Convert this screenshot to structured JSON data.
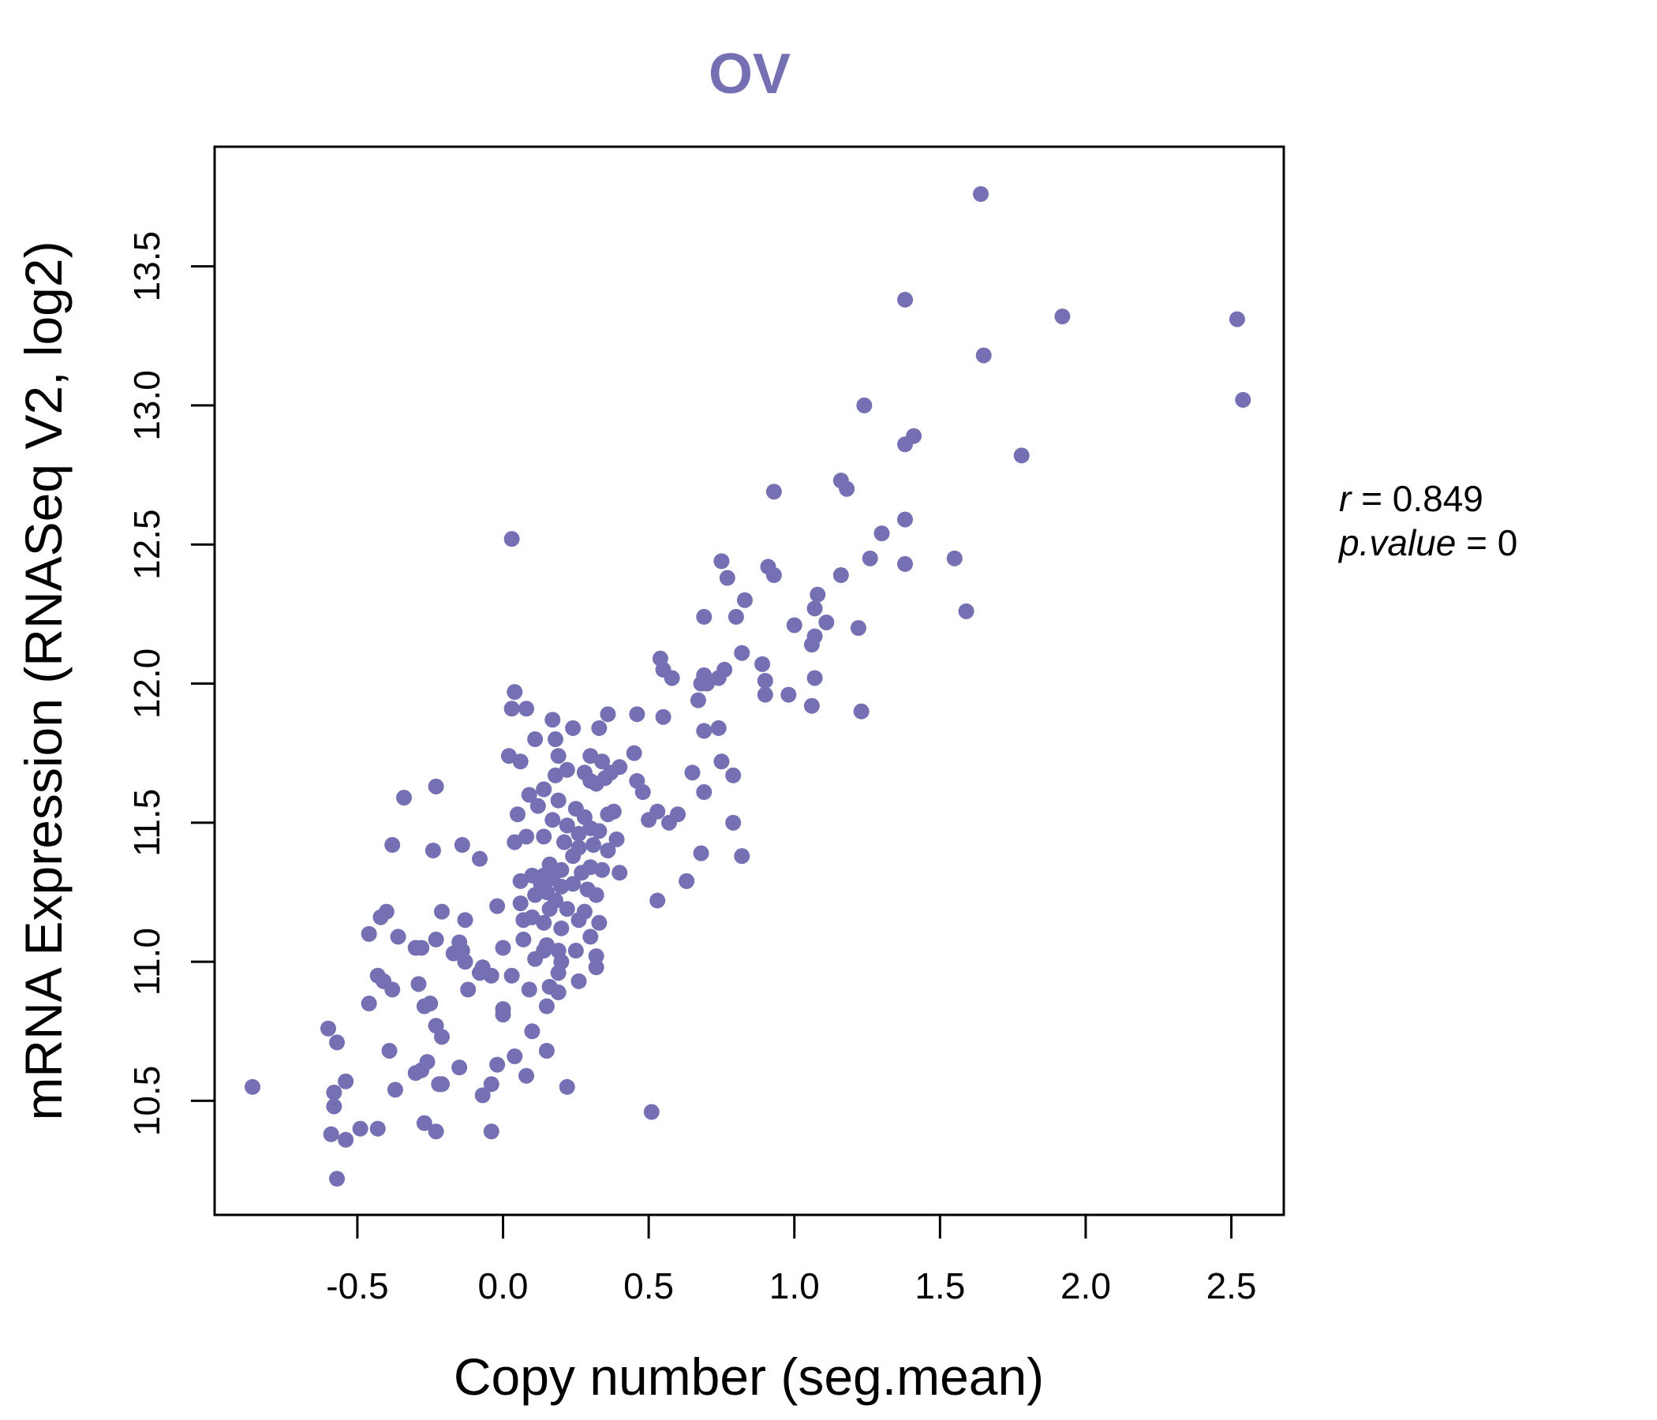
{
  "chart_data": {
    "type": "scatter",
    "title": "OV",
    "xlabel": "Copy number (seg.mean)",
    "ylabel": "mRNA Expression (RNASeq V2, log2)",
    "xlim": [
      -0.99,
      2.68
    ],
    "ylim": [
      10.09,
      13.93
    ],
    "xticks": [
      -0.5,
      0.0,
      0.5,
      1.0,
      1.5,
      2.0,
      2.5
    ],
    "xtick_labels": [
      "-0.5",
      "0.0",
      "0.5",
      "1.0",
      "1.5",
      "2.0",
      "2.5"
    ],
    "yticks": [
      10.5,
      11.0,
      11.5,
      12.0,
      12.5,
      13.0,
      13.5
    ],
    "ytick_labels": [
      "10.5",
      "11.0",
      "11.5",
      "12.0",
      "12.5",
      "13.0",
      "13.5"
    ],
    "color": "#7570b3",
    "stats": {
      "r_symbol": "r",
      "r_value": "0.849",
      "p_symbol": "p.value",
      "p_value": "0",
      "eq": "="
    },
    "points": [
      [
        1.64,
        13.76
      ],
      [
        1.38,
        13.38
      ],
      [
        1.92,
        13.32
      ],
      [
        2.52,
        13.31
      ],
      [
        1.65,
        13.18
      ],
      [
        2.54,
        13.02
      ],
      [
        1.24,
        13.0
      ],
      [
        1.41,
        12.89
      ],
      [
        1.38,
        12.86
      ],
      [
        1.78,
        12.82
      ],
      [
        1.16,
        12.73
      ],
      [
        1.18,
        12.7
      ],
      [
        0.93,
        12.69
      ],
      [
        1.38,
        12.59
      ],
      [
        1.3,
        12.54
      ],
      [
        0.03,
        12.52
      ],
      [
        0.75,
        12.44
      ],
      [
        1.26,
        12.45
      ],
      [
        1.38,
        12.43
      ],
      [
        1.55,
        12.45
      ],
      [
        0.91,
        12.42
      ],
      [
        0.93,
        12.39
      ],
      [
        1.16,
        12.39
      ],
      [
        0.77,
        12.38
      ],
      [
        1.08,
        12.32
      ],
      [
        0.83,
        12.3
      ],
      [
        1.07,
        12.27
      ],
      [
        1.59,
        12.26
      ],
      [
        0.69,
        12.24
      ],
      [
        0.8,
        12.24
      ],
      [
        1.11,
        12.22
      ],
      [
        1.0,
        12.21
      ],
      [
        1.22,
        12.2
      ],
      [
        1.07,
        12.17
      ],
      [
        1.06,
        12.14
      ],
      [
        0.82,
        12.11
      ],
      [
        0.54,
        12.09
      ],
      [
        0.89,
        12.07
      ],
      [
        0.55,
        12.05
      ],
      [
        0.76,
        12.05
      ],
      [
        0.69,
        12.03
      ],
      [
        0.74,
        12.02
      ],
      [
        0.58,
        12.02
      ],
      [
        1.07,
        12.02
      ],
      [
        0.9,
        12.01
      ],
      [
        0.68,
        12.0
      ],
      [
        0.7,
        12.0
      ],
      [
        0.04,
        11.97
      ],
      [
        0.9,
        11.96
      ],
      [
        0.98,
        11.96
      ],
      [
        0.67,
        11.94
      ],
      [
        1.06,
        11.92
      ],
      [
        0.03,
        11.91
      ],
      [
        0.08,
        11.91
      ],
      [
        1.23,
        11.9
      ],
      [
        0.36,
        11.89
      ],
      [
        0.46,
        11.89
      ],
      [
        0.55,
        11.88
      ],
      [
        0.17,
        11.87
      ],
      [
        0.24,
        11.84
      ],
      [
        0.33,
        11.84
      ],
      [
        0.74,
        11.84
      ],
      [
        0.69,
        11.83
      ],
      [
        0.11,
        11.8
      ],
      [
        0.18,
        11.8
      ],
      [
        0.45,
        11.75
      ],
      [
        0.02,
        11.74
      ],
      [
        0.19,
        11.74
      ],
      [
        0.3,
        11.74
      ],
      [
        0.06,
        11.72
      ],
      [
        0.75,
        11.72
      ],
      [
        0.34,
        11.72
      ],
      [
        0.4,
        11.7
      ],
      [
        0.22,
        11.69
      ],
      [
        0.28,
        11.68
      ],
      [
        0.37,
        11.68
      ],
      [
        0.65,
        11.68
      ],
      [
        0.79,
        11.67
      ],
      [
        0.18,
        11.67
      ],
      [
        0.35,
        11.66
      ],
      [
        0.3,
        11.65
      ],
      [
        0.46,
        11.65
      ],
      [
        0.32,
        11.64
      ],
      [
        -0.23,
        11.63
      ],
      [
        0.14,
        11.62
      ],
      [
        0.48,
        11.61
      ],
      [
        0.69,
        11.61
      ],
      [
        0.09,
        11.6
      ],
      [
        -0.34,
        11.59
      ],
      [
        0.19,
        11.58
      ],
      [
        0.12,
        11.56
      ],
      [
        0.25,
        11.55
      ],
      [
        0.38,
        11.54
      ],
      [
        0.36,
        11.53
      ],
      [
        0.53,
        11.54
      ],
      [
        0.6,
        11.53
      ],
      [
        0.05,
        11.53
      ],
      [
        0.28,
        11.52
      ],
      [
        0.17,
        11.51
      ],
      [
        0.5,
        11.51
      ],
      [
        0.57,
        11.5
      ],
      [
        0.79,
        11.5
      ],
      [
        0.22,
        11.49
      ],
      [
        0.3,
        11.48
      ],
      [
        0.33,
        11.47
      ],
      [
        0.26,
        11.46
      ],
      [
        0.08,
        11.45
      ],
      [
        0.14,
        11.45
      ],
      [
        0.39,
        11.44
      ],
      [
        0.04,
        11.43
      ],
      [
        0.21,
        11.43
      ],
      [
        0.31,
        11.42
      ],
      [
        -0.38,
        11.42
      ],
      [
        -0.14,
        11.42
      ],
      [
        0.26,
        11.41
      ],
      [
        -0.24,
        11.4
      ],
      [
        0.36,
        11.4
      ],
      [
        0.68,
        11.39
      ],
      [
        0.82,
        11.38
      ],
      [
        0.24,
        11.38
      ],
      [
        -0.08,
        11.37
      ],
      [
        0.16,
        11.35
      ],
      [
        0.3,
        11.34
      ],
      [
        0.2,
        11.33
      ],
      [
        0.34,
        11.33
      ],
      [
        0.27,
        11.32
      ],
      [
        0.4,
        11.32
      ],
      [
        0.14,
        11.31
      ],
      [
        0.1,
        11.31
      ],
      [
        0.17,
        11.3
      ],
      [
        0.06,
        11.29
      ],
      [
        0.63,
        11.29
      ],
      [
        0.13,
        11.28
      ],
      [
        0.24,
        11.28
      ],
      [
        0.2,
        11.27
      ],
      [
        0.29,
        11.26
      ],
      [
        0.15,
        11.25
      ],
      [
        0.32,
        11.24
      ],
      [
        0.11,
        11.24
      ],
      [
        0.18,
        11.22
      ],
      [
        0.53,
        11.22
      ],
      [
        0.06,
        11.21
      ],
      [
        -0.02,
        11.2
      ],
      [
        0.22,
        11.19
      ],
      [
        0.16,
        11.19
      ],
      [
        0.28,
        11.18
      ],
      [
        -0.4,
        11.18
      ],
      [
        -0.21,
        11.18
      ],
      [
        0.1,
        11.16
      ],
      [
        0.26,
        11.15
      ],
      [
        -0.42,
        11.16
      ],
      [
        0.07,
        11.15
      ],
      [
        -0.13,
        11.15
      ],
      [
        0.14,
        11.14
      ],
      [
        0.33,
        11.14
      ],
      [
        0.2,
        11.12
      ],
      [
        -0.46,
        11.1
      ],
      [
        -0.36,
        11.09
      ],
      [
        0.3,
        11.09
      ],
      [
        0.07,
        11.08
      ],
      [
        -0.23,
        11.08
      ],
      [
        -0.15,
        11.07
      ],
      [
        0.15,
        11.06
      ],
      [
        -0.3,
        11.05
      ],
      [
        -0.28,
        11.05
      ],
      [
        0.0,
        11.05
      ],
      [
        0.25,
        11.04
      ],
      [
        0.14,
        11.04
      ],
      [
        -0.14,
        11.04
      ],
      [
        0.19,
        11.04
      ],
      [
        -0.17,
        11.03
      ],
      [
        0.32,
        11.02
      ],
      [
        0.11,
        11.01
      ],
      [
        0.2,
        11.0
      ],
      [
        -0.13,
        11.0
      ],
      [
        0.32,
        10.98
      ],
      [
        -0.07,
        10.98
      ],
      [
        -0.08,
        10.96
      ],
      [
        0.19,
        10.96
      ],
      [
        -0.04,
        10.95
      ],
      [
        0.03,
        10.95
      ],
      [
        -0.43,
        10.95
      ],
      [
        -0.41,
        10.93
      ],
      [
        0.26,
        10.93
      ],
      [
        -0.29,
        10.92
      ],
      [
        -0.38,
        10.9
      ],
      [
        0.16,
        10.91
      ],
      [
        -0.12,
        10.9
      ],
      [
        0.09,
        10.9
      ],
      [
        0.19,
        10.89
      ],
      [
        -0.46,
        10.85
      ],
      [
        -0.25,
        10.85
      ],
      [
        0.15,
        10.84
      ],
      [
        -0.27,
        10.84
      ],
      [
        0.0,
        10.83
      ],
      [
        0.0,
        10.81
      ],
      [
        -0.23,
        10.77
      ],
      [
        -0.6,
        10.76
      ],
      [
        0.1,
        10.75
      ],
      [
        -0.21,
        10.73
      ],
      [
        -0.57,
        10.71
      ],
      [
        -0.39,
        10.68
      ],
      [
        0.15,
        10.68
      ],
      [
        0.04,
        10.66
      ],
      [
        -0.26,
        10.64
      ],
      [
        -0.02,
        10.63
      ],
      [
        -0.15,
        10.62
      ],
      [
        -0.28,
        10.61
      ],
      [
        -0.3,
        10.6
      ],
      [
        0.08,
        10.59
      ],
      [
        -0.54,
        10.57
      ],
      [
        -0.21,
        10.56
      ],
      [
        -0.22,
        10.56
      ],
      [
        -0.04,
        10.56
      ],
      [
        0.22,
        10.55
      ],
      [
        -0.86,
        10.55
      ],
      [
        -0.37,
        10.54
      ],
      [
        -0.58,
        10.53
      ],
      [
        -0.07,
        10.52
      ],
      [
        -0.58,
        10.48
      ],
      [
        0.51,
        10.46
      ],
      [
        -0.27,
        10.42
      ],
      [
        -0.49,
        10.4
      ],
      [
        -0.43,
        10.4
      ],
      [
        -0.23,
        10.39
      ],
      [
        -0.04,
        10.39
      ],
      [
        -0.59,
        10.38
      ],
      [
        -0.54,
        10.36
      ],
      [
        -0.57,
        10.22
      ]
    ]
  }
}
